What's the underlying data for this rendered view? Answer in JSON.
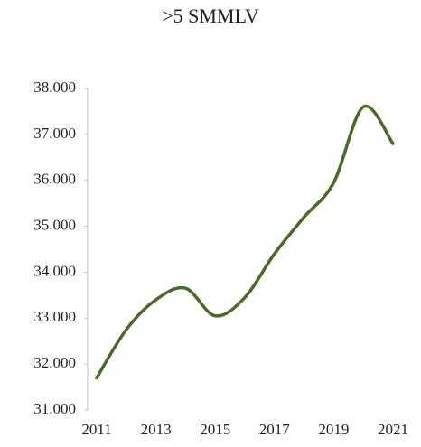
{
  "chart_data": {
    "type": "line",
    "title": ">5 SMMLV",
    "x": [
      2011,
      2012,
      2013,
      2014,
      2015,
      2016,
      2017,
      2018,
      2019,
      2020,
      2021
    ],
    "series": [
      {
        "name": ">5 SMMLV",
        "color": "#4a6a2a",
        "values": [
          31700,
          32750,
          33400,
          33650,
          33050,
          33450,
          34400,
          35200,
          35950,
          37600,
          36800
        ]
      }
    ],
    "xlim": [
      2011,
      2021
    ],
    "xticks": [
      2011,
      2013,
      2015,
      2017,
      2019,
      2021
    ],
    "ylim": [
      31000,
      38000
    ],
    "yticks": [
      {
        "value": 31000,
        "label": "31.000"
      },
      {
        "value": 32000,
        "label": "32.000"
      },
      {
        "value": 33000,
        "label": "33.000"
      },
      {
        "value": 34000,
        "label": "34.000"
      },
      {
        "value": 35000,
        "label": "35.000"
      },
      {
        "value": 36000,
        "label": "36.000"
      },
      {
        "value": 37000,
        "label": "37.000"
      },
      {
        "value": 38000,
        "label": "38.000"
      }
    ],
    "grid": false,
    "smooth": true
  }
}
